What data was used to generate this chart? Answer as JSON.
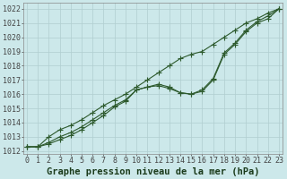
{
  "title": "",
  "xlabel": "Graphe pression niveau de la mer (hPa)",
  "ylabel": "",
  "bg_color": "#cce8ea",
  "grid_color": "#b0ced0",
  "line_color": "#2d5a2d",
  "marker_color": "#2d5a2d",
  "ylim": [
    1011.8,
    1022.4
  ],
  "xlim": [
    -0.3,
    23.3
  ],
  "yticks": [
    1012,
    1013,
    1014,
    1015,
    1016,
    1017,
    1018,
    1019,
    1020,
    1021,
    1022
  ],
  "xticks": [
    0,
    1,
    2,
    3,
    4,
    5,
    6,
    7,
    8,
    9,
    10,
    11,
    12,
    13,
    14,
    15,
    16,
    17,
    18,
    19,
    20,
    21,
    22,
    23
  ],
  "line1_x": [
    0,
    1,
    2,
    3,
    4,
    5,
    6,
    7,
    8,
    9,
    10,
    11,
    12,
    13,
    14,
    15,
    16,
    17,
    18,
    19,
    20,
    21,
    22,
    23
  ],
  "line1_y": [
    1012.3,
    1012.3,
    1012.5,
    1012.8,
    1013.1,
    1013.5,
    1014.0,
    1014.5,
    1015.1,
    1015.5,
    1016.3,
    1016.5,
    1016.7,
    1016.5,
    1016.1,
    1016.0,
    1016.2,
    1017.0,
    1018.8,
    1019.5,
    1020.4,
    1021.0,
    1021.3,
    1022.0
  ],
  "line2_x": [
    0,
    1,
    2,
    3,
    4,
    5,
    6,
    7,
    8,
    9,
    10,
    11,
    12,
    13,
    14,
    15,
    16,
    17,
    18,
    19,
    20,
    21,
    22,
    23
  ],
  "line2_y": [
    1012.3,
    1012.3,
    1012.6,
    1013.0,
    1013.3,
    1013.7,
    1014.2,
    1014.7,
    1015.2,
    1015.6,
    1016.3,
    1016.5,
    1016.6,
    1016.4,
    1016.1,
    1016.0,
    1016.3,
    1017.1,
    1018.9,
    1019.6,
    1020.5,
    1021.1,
    1021.5,
    1022.0
  ],
  "line3_x": [
    0,
    1,
    2,
    3,
    4,
    5,
    6,
    7,
    8,
    9,
    10,
    11,
    12,
    13,
    14,
    15,
    16,
    17,
    18,
    19,
    20,
    21,
    22,
    23
  ],
  "line3_y": [
    1012.3,
    1012.3,
    1013.0,
    1013.5,
    1013.8,
    1014.2,
    1014.7,
    1015.2,
    1015.6,
    1016.0,
    1016.5,
    1017.0,
    1017.5,
    1018.0,
    1018.5,
    1018.8,
    1019.0,
    1019.5,
    1020.0,
    1020.5,
    1021.0,
    1021.3,
    1021.7,
    1022.0
  ],
  "xlabel_fontsize": 7.5,
  "tick_fontsize": 6.0,
  "marker": "+",
  "markersize": 4.0,
  "linewidth": 0.8,
  "figwidth": 3.2,
  "figheight": 2.0,
  "dpi": 100
}
